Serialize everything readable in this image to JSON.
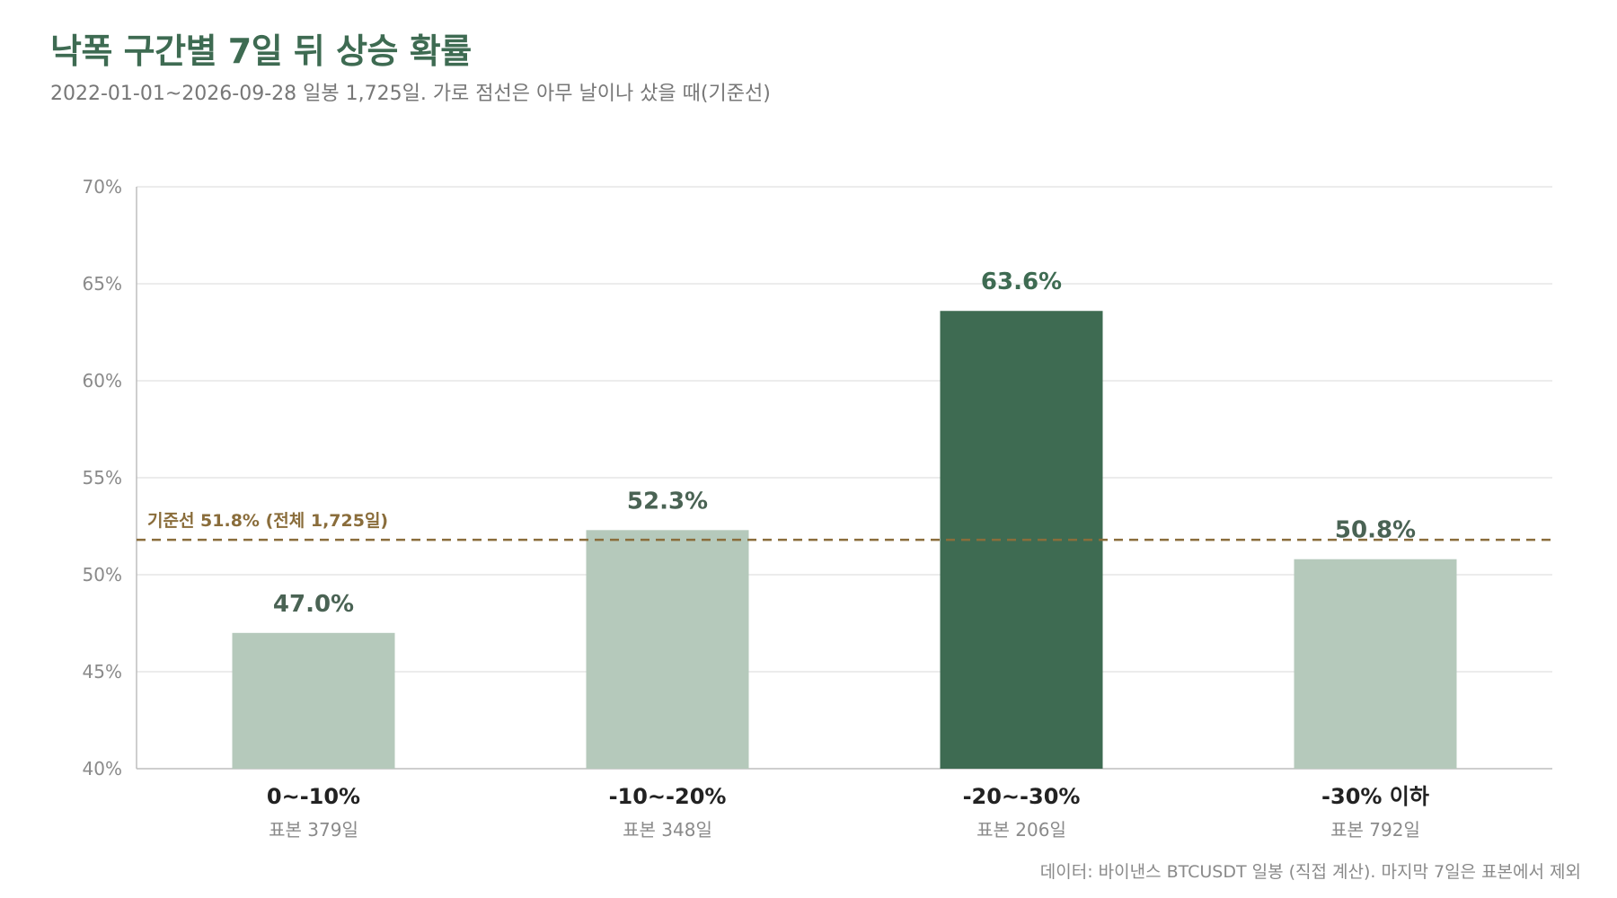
{
  "header": {
    "title": "낙폭 구간별 7일 뒤 상승 확률",
    "subtitle": "2022-01-01~2026-09-28 일봉 1,725일. 가로 점선은 아무 날이나 샀을 때(기준선)"
  },
  "footer": {
    "source": "데이터: 바이낸스 BTCUSDT 일봉 (직접 계산). 마지막 7일은 표본에서 제외"
  },
  "chart_data": {
    "type": "bar",
    "categories": [
      "0~-10%",
      "-10~-20%",
      "-20~-30%",
      "-30% 이하"
    ],
    "sample_labels": [
      "표본 379일",
      "표본 348일",
      "표본 206일",
      "표본 792일"
    ],
    "values": [
      47.0,
      52.3,
      63.6,
      50.8
    ],
    "value_labels": [
      "47.0%",
      "52.3%",
      "63.6%",
      "50.8%"
    ],
    "highlight_index": 2,
    "ylim": [
      40,
      70
    ],
    "yticks": [
      40,
      45,
      50,
      55,
      60,
      65,
      70
    ],
    "ytick_labels": [
      "40%",
      "45%",
      "50%",
      "55%",
      "60%",
      "65%",
      "70%"
    ],
    "baseline": {
      "value": 51.8,
      "label": "기준선 51.8% (전체 1,725일)"
    },
    "grid": true,
    "colors": {
      "bar": "#b5c9bb",
      "bar_highlight": "#3e6b52",
      "value_label": "#4a6354",
      "value_label_highlight": "#3e6b52",
      "baseline": "#8a6d3b",
      "grid": "#e6e6e6",
      "axis": "#bdbdbd"
    }
  }
}
